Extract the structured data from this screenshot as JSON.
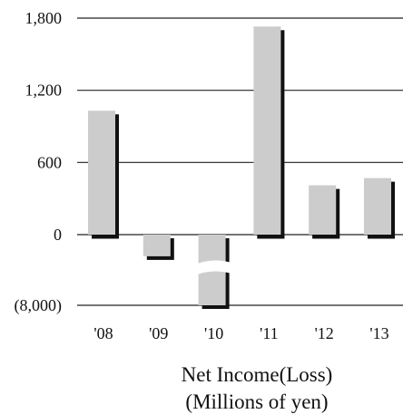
{
  "chart_data": {
    "type": "bar",
    "title": "",
    "caption_lines": [
      "Net Income(Loss)",
      "(Millions of yen)"
    ],
    "xlabel": "",
    "ylabel": "",
    "categories": [
      "'08",
      "'09",
      "'10",
      "'11",
      "'12",
      "'13"
    ],
    "series": [
      {
        "values": [
          1030,
          -180,
          -8000,
          1730,
          410,
          470
        ]
      }
    ],
    "ylim": [
      -8000,
      1800
    ],
    "y_ticks": [
      1800,
      1200,
      600,
      0,
      -8000
    ],
    "y_tick_labels": [
      "1,800",
      "1,200",
      "600",
      "0",
      "(8,000)"
    ],
    "axis_break": "between 0 and (8,000); the '10 bar is drawn with a break",
    "grid": true,
    "legend": "none",
    "colors": {
      "bar": "#cccccc",
      "shadow": "#111111",
      "grid": "#222222"
    }
  }
}
